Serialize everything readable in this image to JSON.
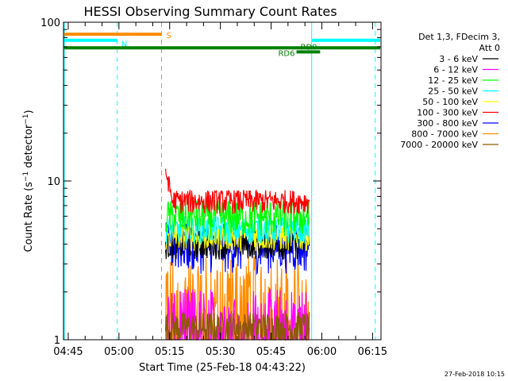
{
  "chart_data": {
    "type": "line",
    "title": "HESSI Observing Summary Count Rates",
    "xlabel": "Start Time (25-Feb-18 04:43:22)",
    "ylabel": "Count Rate (s⁻¹ detector⁻¹)",
    "ylabel_parts": {
      "pre": "Count Rate (s",
      "sup1": "−1",
      "mid": " detector",
      "sup2": "−1",
      "post": ")"
    },
    "yscale": "log",
    "ylim": [
      1,
      100
    ],
    "xlim_minutes": [
      -1.4,
      92.5
    ],
    "xticks": [
      {
        "m": 0,
        "label": "04:45"
      },
      {
        "m": 15,
        "label": "05:00"
      },
      {
        "m": 30,
        "label": "05:15"
      },
      {
        "m": 45,
        "label": "05:30"
      },
      {
        "m": 60,
        "label": "05:45"
      },
      {
        "m": 75,
        "label": "06:00"
      },
      {
        "m": 90,
        "label": "06:15"
      }
    ],
    "yticks": [
      {
        "v": 1,
        "label": "1"
      },
      {
        "v": 10,
        "label": "10"
      },
      {
        "v": 100,
        "label": "100"
      }
    ],
    "legend_header": [
      "Det 1,3, FDecim 3,",
      "Att 0"
    ],
    "series": [
      {
        "name": "3 - 6 keV",
        "color": "#000000",
        "level": 4.0,
        "spread": 0.8
      },
      {
        "name": "6 - 12 keV",
        "color": "#ff00ff",
        "level": 1.5,
        "spread": 0.6
      },
      {
        "name": "12 - 25 keV",
        "color": "#00ff00",
        "level": 6.0,
        "spread": 1.6
      },
      {
        "name": "25 - 50 keV",
        "color": "#00ffff",
        "level": 5.0,
        "spread": 1.0
      },
      {
        "name": "50 - 100 keV",
        "color": "#ffff00",
        "level": 4.5,
        "spread": 0.9
      },
      {
        "name": "100 - 300 keV",
        "color": "#ff0000",
        "level": 7.5,
        "spread": 1.3
      },
      {
        "name": "300 - 800 keV",
        "color": "#0000ff",
        "level": 4.0,
        "spread": 1.4
      },
      {
        "name": "800 - 7000 keV",
        "color": "#ff8c00",
        "level": 2.2,
        "spread": 1.2
      },
      {
        "name": "7000 - 20000 keV",
        "color": "#8b5a00",
        "level": 1.2,
        "spread": 0.3
      }
    ],
    "data_range_minutes": [
      28.8,
      71.3
    ],
    "flags": [
      {
        "label": "S",
        "color": "#ff8c00",
        "y": 84,
        "x0": -1.4,
        "x1": 27.6,
        "label_side": "right"
      },
      {
        "label": "N",
        "color": "#00ffff",
        "y": 77,
        "x0": -1.4,
        "x1": 14.5,
        "label_side": "right-below"
      },
      {
        "label": "N",
        "color": "#00ffff",
        "y": 77,
        "x0": 72.0,
        "x1": 92.5,
        "label_side": "none"
      },
      {
        "label": "RD0",
        "color": "#008000",
        "y": 69,
        "x0": -1.4,
        "x1": 92.5,
        "label_side": "none"
      },
      {
        "label": "RD0",
        "color": "#008000",
        "y": 65,
        "x0": 67.5,
        "x1": 74.5,
        "label_side": "above"
      },
      {
        "label": "RD6",
        "color": "#008000",
        "y": 65,
        "x0": 67.5,
        "x1": 67.5,
        "label_side": "left"
      }
    ],
    "vlines": [
      {
        "m": 14.5,
        "color": "#00ffff",
        "dash": true
      },
      {
        "m": 27.6,
        "color": "#ff8c00",
        "dash": true
      },
      {
        "m": 72.0,
        "color": "#00ffff",
        "dash": false
      },
      {
        "m": 90.8,
        "color": "#00ffff",
        "dash": true
      }
    ],
    "grid": false,
    "legend_placement": "right"
  },
  "footer_date": "27-Feb-2018 10:15"
}
